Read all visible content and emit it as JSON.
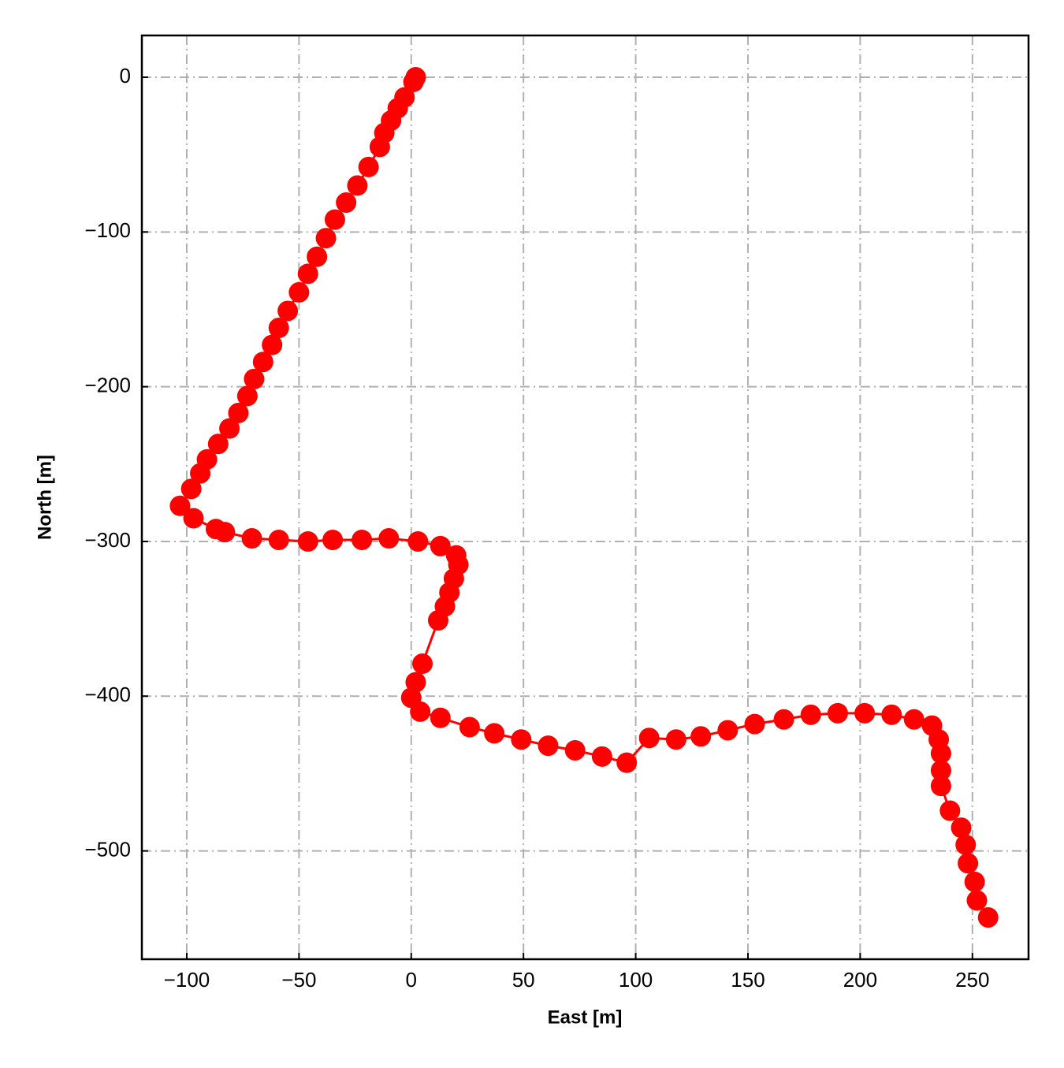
{
  "chart_data": {
    "type": "line",
    "xlabel": "East [m]",
    "ylabel": "North [m]",
    "color": "#ff0000",
    "grid": true,
    "xlim": [
      -120,
      275
    ],
    "ylim": [
      -570,
      27
    ],
    "xticks": [
      {
        "value": -100,
        "label": "−100"
      },
      {
        "value": -50,
        "label": "−50"
      },
      0,
      50,
      100,
      150,
      200,
      250
    ],
    "yticks": [
      0,
      {
        "value": -100,
        "label": "−100"
      },
      {
        "value": -200,
        "label": "−200"
      },
      {
        "value": -300,
        "label": "−300"
      },
      {
        "value": -400,
        "label": "−400"
      },
      {
        "value": -500,
        "label": "−500"
      }
    ],
    "x": [
      2,
      1,
      -3,
      -6,
      -9,
      -12,
      -14,
      -19,
      -24,
      -29,
      -34,
      -38,
      -42,
      -46,
      -50,
      -55,
      -59,
      -62,
      -66,
      -70,
      -73,
      -77,
      -81,
      -86,
      -91,
      -94,
      -98,
      -103,
      -97,
      -87,
      -83,
      -71,
      -59,
      -46,
      -35,
      -22,
      -10,
      3,
      13,
      20,
      21,
      19,
      17,
      15,
      12,
      5,
      2,
      0,
      4,
      13,
      26,
      37,
      49,
      61,
      73,
      85,
      96,
      106,
      118,
      129,
      141,
      153,
      166,
      178,
      190,
      202,
      214,
      224,
      232,
      235,
      236,
      236,
      236,
      240,
      245,
      247,
      248,
      251,
      252,
      257
    ],
    "values": [
      0,
      -3,
      -13,
      -20,
      -28,
      -36,
      -45,
      -58,
      -70,
      -81,
      -92,
      -104,
      -116,
      -127,
      -139,
      -151,
      -162,
      -173,
      -184,
      -195,
      -206,
      -217,
      -227,
      -237,
      -247,
      -256,
      -266,
      -277,
      -285,
      -292,
      -294,
      -298,
      -299,
      -300,
      -299,
      -299,
      -298,
      -300,
      -303,
      -309,
      -315,
      -324,
      -333,
      -342,
      -351,
      -379,
      -391,
      -401,
      -410,
      -414,
      -420,
      -424,
      -428,
      -432,
      -435,
      -439,
      -443,
      -427,
      -428,
      -426,
      -422,
      -418,
      -415,
      -412,
      -411,
      -411,
      -412,
      -415,
      -419,
      -428,
      -437,
      -448,
      -458,
      -474,
      -485,
      -496,
      -508,
      -520,
      -532,
      -543
    ]
  }
}
